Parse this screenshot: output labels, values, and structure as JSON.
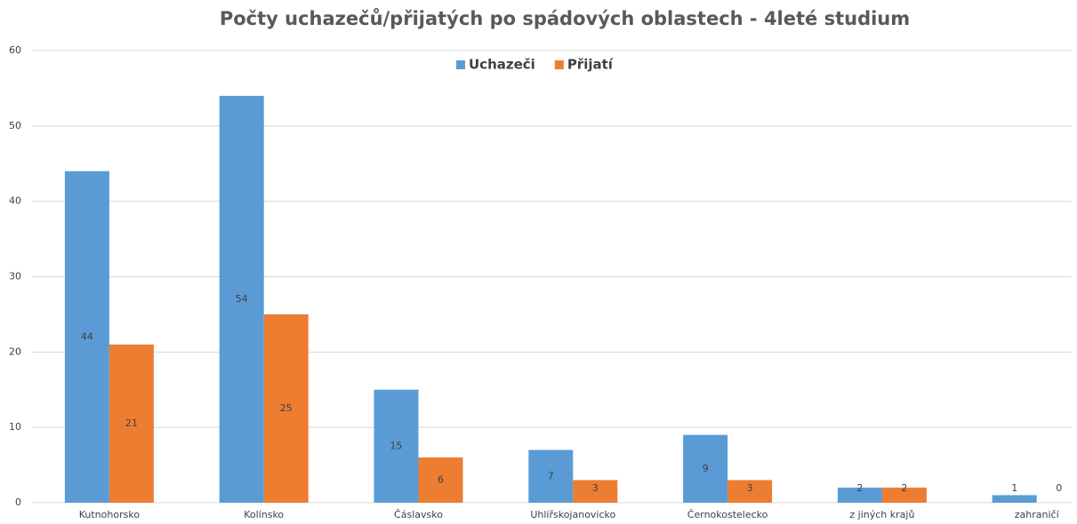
{
  "chart_data": {
    "type": "bar",
    "title": "Počty uchazečů/přijatých po spádových oblastech - 4leté studium",
    "categories": [
      "Kutnohorsko",
      "Kolínsko",
      "Čáslavsko",
      "Uhlířskojanovicko",
      "Černokostelecko",
      "z jiných krajů",
      "zahraničí"
    ],
    "series": [
      {
        "name": "Uchazeči",
        "color": "#5b9bd5",
        "values": [
          44,
          54,
          15,
          7,
          9,
          2,
          1
        ]
      },
      {
        "name": "Přijatí",
        "color": "#ed7d31",
        "values": [
          21,
          25,
          6,
          3,
          3,
          2,
          0
        ]
      }
    ],
    "ylim": [
      0,
      60
    ],
    "yticks": [
      0,
      10,
      20,
      30,
      40,
      50,
      60
    ],
    "grid": true,
    "legend": "top"
  }
}
